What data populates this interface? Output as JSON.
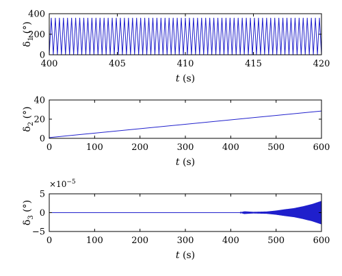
{
  "chart_data": [
    {
      "type": "line",
      "ylabel_symbol": "δ",
      "ylabel_sub": "1",
      "ylabel_unit": "(°)",
      "xlabel_var": "t",
      "xlabel_unit": "(s)",
      "xlim": [
        400,
        420
      ],
      "ylim": [
        0,
        400
      ],
      "xticks": [
        400,
        405,
        410,
        415,
        420
      ],
      "yticks": [
        0,
        200,
        400
      ],
      "series": [
        {
          "color": "#1f1fcc",
          "shape": "sawtooth",
          "min": 0,
          "max": 360,
          "cycles": 67
        }
      ]
    },
    {
      "type": "line",
      "ylabel_symbol": "δ",
      "ylabel_sub": "2",
      "ylabel_unit": "(°)",
      "xlabel_var": "t",
      "xlabel_unit": "(s)",
      "xlim": [
        0,
        600
      ],
      "ylim": [
        0,
        40
      ],
      "xticks": [
        0,
        100,
        200,
        300,
        400,
        500,
        600
      ],
      "yticks": [
        0,
        20,
        40
      ],
      "series": [
        {
          "color": "#1f1fcc",
          "x": [
            0,
            600
          ],
          "y": [
            0.8,
            28.5
          ]
        }
      ]
    },
    {
      "type": "line",
      "ylabel_symbol": "δ",
      "ylabel_sub": "3",
      "ylabel_unit": "(°)",
      "xlabel_var": "t",
      "xlabel_unit": "(s)",
      "xlim": [
        0,
        600
      ],
      "ylim": [
        -5,
        5
      ],
      "exponent_base": "×10",
      "exponent_power": "−5",
      "xticks": [
        0,
        100,
        200,
        300,
        400,
        500,
        600
      ],
      "yticks": [
        -5,
        0,
        5
      ],
      "series": [
        {
          "color": "#1f1fcc",
          "shape": "growing-oscillation",
          "x": [
            0,
            420,
            430,
            450,
            480,
            500,
            520,
            540,
            560,
            580,
            600
          ],
          "envelope": [
            0,
            0,
            0.35,
            0.2,
            0.3,
            0.55,
            0.9,
            1.2,
            1.7,
            2.3,
            3.1
          ]
        }
      ]
    }
  ]
}
